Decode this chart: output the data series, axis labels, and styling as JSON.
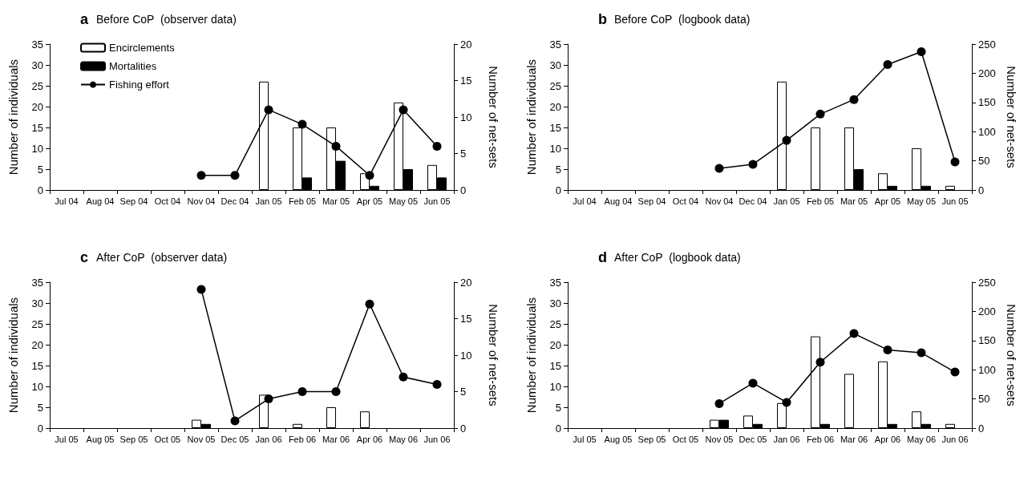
{
  "chart_data": [
    {
      "type": "bar",
      "title": "a",
      "subtitle": "Before CoP  (observer data)",
      "ylabel": "Number of individuals",
      "y2label": "Number of net-sets",
      "categories": [
        "Jul 04",
        "Aug 04",
        "Sep 04",
        "Oct 04",
        "Nov 04",
        "Dec 04",
        "Jan 05",
        "Feb 05",
        "Mar 05",
        "Apr 05",
        "May 05",
        "Jun 05"
      ],
      "series": [
        {
          "name": "Encirclements",
          "color": "#ffffff",
          "values": [
            null,
            null,
            null,
            null,
            null,
            null,
            26,
            15,
            15,
            4,
            21,
            6
          ]
        },
        {
          "name": "Mortalities",
          "color": "#000000",
          "values": [
            null,
            null,
            null,
            null,
            null,
            null,
            null,
            3,
            7,
            1,
            5,
            3
          ]
        },
        {
          "name": "Fishing effort",
          "type": "line",
          "axis": "y2",
          "color": "#000000",
          "values": [
            null,
            null,
            null,
            null,
            2,
            2,
            11,
            9,
            6,
            2,
            11,
            6
          ]
        }
      ],
      "ylim": [
        0,
        35
      ],
      "yticks": [
        0,
        5,
        10,
        15,
        20,
        25,
        30,
        35
      ],
      "y2lim": [
        0,
        20
      ],
      "y2ticks": [
        0,
        5,
        10,
        15,
        20
      ],
      "legend": "top left",
      "marker": "circle",
      "line_style": "solid",
      "grid": false
    },
    {
      "type": "bar",
      "title": "b",
      "subtitle": "Before CoP  (logbook data)",
      "ylabel": "Number of individuals",
      "y2label": "Number of net-sets",
      "categories": [
        "Jul 04",
        "Aug 04",
        "Sep 04",
        "Oct 04",
        "Nov 04",
        "Dec 04",
        "Jan 05",
        "Feb 05",
        "Mar 05",
        "Apr 05",
        "May 05",
        "Jun 05"
      ],
      "series": [
        {
          "color": "#ffffff",
          "values": [
            null,
            null,
            null,
            null,
            null,
            null,
            26,
            15,
            15,
            4,
            10,
            1
          ]
        },
        {
          "color": "#000000",
          "values": [
            null,
            null,
            null,
            null,
            null,
            null,
            null,
            null,
            5,
            1,
            1,
            null
          ]
        },
        {
          "type": "line",
          "axis": "y2",
          "color": "#000000",
          "values": [
            null,
            null,
            null,
            null,
            37,
            44,
            85,
            130,
            155,
            215,
            237,
            48
          ]
        }
      ],
      "ylim": [
        0,
        35
      ],
      "yticks": [
        0,
        5,
        10,
        15,
        20,
        25,
        30,
        35
      ],
      "y2lim": [
        0,
        250
      ],
      "y2ticks": [
        0,
        50,
        100,
        150,
        200,
        250
      ],
      "legend": false,
      "marker": "circle",
      "line_style": "solid",
      "grid": false
    },
    {
      "type": "bar",
      "title": "c",
      "subtitle": "After CoP  (observer data)",
      "ylabel": "Number of individuals",
      "y2label": "Number of net-sets",
      "categories": [
        "Jul 05",
        "Aug 05",
        "Sep 05",
        "Oct 05",
        "Nov 05",
        "Dec 05",
        "Jan 06",
        "Feb 06",
        "Mar 06",
        "Apr 06",
        "May 06",
        "Jun 06"
      ],
      "series": [
        {
          "color": "#ffffff",
          "values": [
            null,
            null,
            null,
            null,
            2,
            null,
            8,
            1,
            5,
            4,
            null,
            null
          ]
        },
        {
          "color": "#000000",
          "values": [
            null,
            null,
            null,
            null,
            1,
            null,
            null,
            null,
            null,
            null,
            null,
            null
          ]
        },
        {
          "type": "line",
          "axis": "y2",
          "color": "#000000",
          "values": [
            null,
            null,
            null,
            null,
            19,
            1,
            4,
            5,
            5,
            17,
            7,
            6
          ]
        }
      ],
      "ylim": [
        0,
        35
      ],
      "yticks": [
        0,
        5,
        10,
        15,
        20,
        25,
        30,
        35
      ],
      "y2lim": [
        0,
        20
      ],
      "y2ticks": [
        0,
        5,
        10,
        15,
        20
      ],
      "legend": false,
      "marker": "circle",
      "line_style": "solid",
      "grid": false
    },
    {
      "type": "bar",
      "title": "d",
      "subtitle": "After CoP  (logbook data)",
      "ylabel": "Number of individuals",
      "y2label": "Number of net-sets",
      "categories": [
        "Jul 05",
        "Aug 05",
        "Sep 05",
        "Oct 05",
        "Nov 05",
        "Dec 05",
        "Jan 06",
        "Feb 06",
        "Mar 06",
        "Apr 06",
        "May 06",
        "Jun 06"
      ],
      "series": [
        {
          "color": "#ffffff",
          "values": [
            null,
            null,
            null,
            null,
            2,
            3,
            6,
            22,
            13,
            16,
            4,
            1
          ]
        },
        {
          "color": "#000000",
          "values": [
            null,
            null,
            null,
            null,
            2,
            1,
            null,
            1,
            null,
            1,
            1,
            null
          ]
        },
        {
          "type": "line",
          "axis": "y2",
          "color": "#000000",
          "values": [
            null,
            null,
            null,
            null,
            42,
            77,
            44,
            113,
            162,
            134,
            129,
            96
          ]
        }
      ],
      "ylim": [
        0,
        35
      ],
      "yticks": [
        0,
        5,
        10,
        15,
        20,
        25,
        30,
        35
      ],
      "y2lim": [
        0,
        250
      ],
      "y2ticks": [
        0,
        50,
        100,
        150,
        200,
        250
      ],
      "legend": false,
      "marker": "circle",
      "line_style": "solid",
      "grid": false
    }
  ]
}
